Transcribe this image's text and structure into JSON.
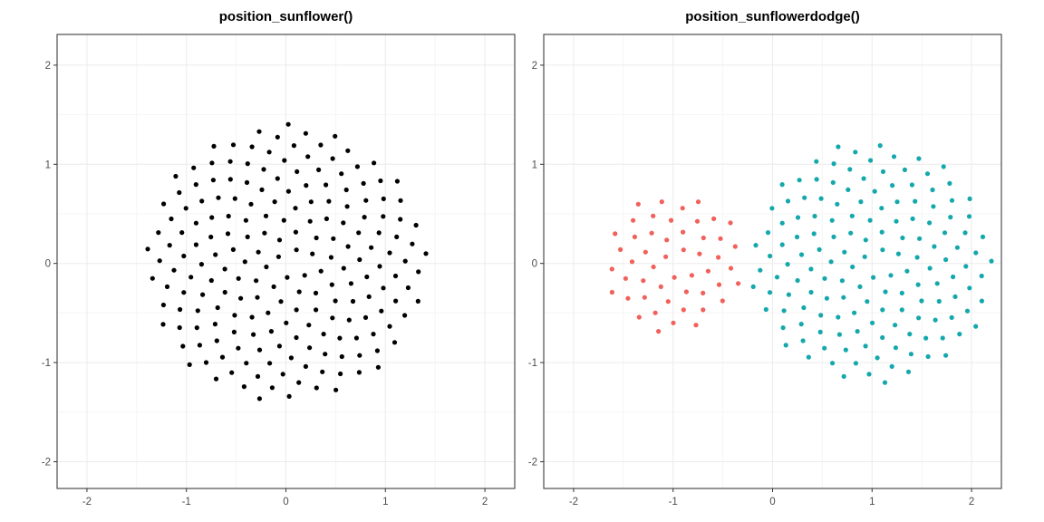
{
  "figure": {
    "background": "#ffffff",
    "theme": {
      "panel_background": "#ffffff",
      "panel_border": "#4d4d4d",
      "grid_major": "#ebebeb",
      "grid_minor": "#f5f5f5",
      "tick_mark": "#333333",
      "axis_text": "#4d4d4d",
      "title_text": "#000000"
    }
  },
  "chart_data": [
    {
      "type": "scatter",
      "title": "position_sunflower()",
      "xlabel": "",
      "ylabel": "",
      "xlim": [
        -2.3,
        2.3
      ],
      "ylim": [
        -2.27,
        2.31
      ],
      "xticks": [
        -2,
        -1,
        0,
        1,
        2
      ],
      "yticks": [
        -2,
        -1,
        0,
        1,
        2
      ],
      "xminor": [
        -1.5,
        -0.5,
        0.5,
        1.5
      ],
      "yminor": [
        -1.5,
        -0.5,
        0.5,
        1.5
      ],
      "grid": "major+minor",
      "legend": "none",
      "pattern": "vogel_sunflower_spiral",
      "golden_angle_deg": 137.50776405,
      "radial_scale": 0.1,
      "point_radius_px": 2.6,
      "series": [
        {
          "name": "black",
          "color": "#000000",
          "n": 200,
          "center": [
            0,
            0
          ]
        }
      ]
    },
    {
      "type": "scatter",
      "title": "position_sunflowerdodge()",
      "xlabel": "",
      "ylabel": "",
      "xlim": [
        -2.3,
        2.3
      ],
      "ylim": [
        -2.27,
        2.31
      ],
      "xticks": [
        -2,
        -1,
        0,
        1,
        2
      ],
      "yticks": [
        -2,
        -1,
        0,
        1,
        2
      ],
      "xminor": [
        -1.5,
        -0.5,
        0.5,
        1.5
      ],
      "yminor": [
        -1.5,
        -0.5,
        0.5,
        1.5
      ],
      "grid": "major+minor",
      "legend": "none",
      "pattern": "vogel_sunflower_spiral",
      "golden_angle_deg": 137.50776405,
      "radial_scale": 0.1,
      "point_radius_px": 2.6,
      "series": [
        {
          "name": "salmon",
          "color": "#F1605B",
          "n": 50,
          "center": [
            -1,
            0
          ]
        },
        {
          "name": "teal",
          "color": "#14A8AC",
          "n": 150,
          "center": [
            1,
            0
          ]
        }
      ]
    }
  ]
}
